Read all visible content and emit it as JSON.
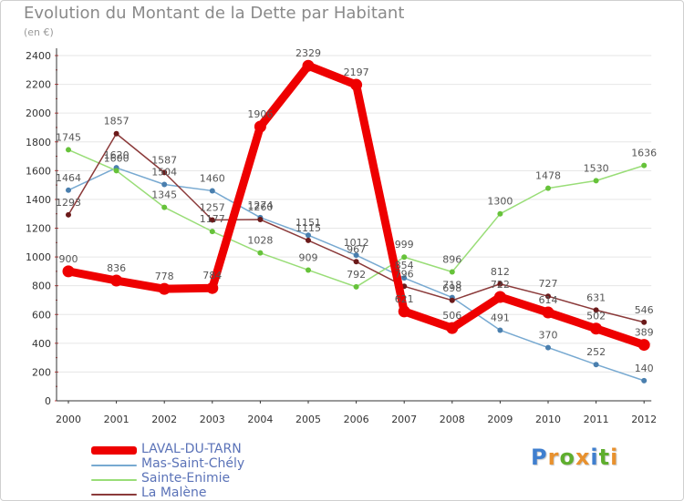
{
  "title": "Evolution du Montant de la Dette par Habitant",
  "subtitle": "(en €)",
  "logo": "Proxiti",
  "chart_data": {
    "type": "line",
    "title": "Evolution du Montant de la Dette par Habitant",
    "subtitle": "(en €)",
    "xlabel": "",
    "ylabel": "",
    "categories": [
      "2000",
      "2001",
      "2002",
      "2003",
      "2004",
      "2005",
      "2006",
      "2007",
      "2008",
      "2009",
      "2010",
      "2011",
      "2012"
    ],
    "ylim": [
      0,
      2400
    ],
    "yticks": [
      0,
      200,
      400,
      600,
      800,
      1000,
      1200,
      1400,
      1600,
      1800,
      2000,
      2200,
      2400
    ],
    "grid": true,
    "legend": "bottom-left",
    "series": [
      {
        "name": "LAVAL-DU-TARN",
        "color": "#ee0000",
        "width": 9,
        "marker": "#ee0000",
        "values": [
          900,
          836,
          778,
          784,
          1906,
          2329,
          2197,
          621,
          506,
          722,
          614,
          502,
          389
        ]
      },
      {
        "name": "Mas-Saint-Chély",
        "color": "#77a9d1",
        "width": 1.5,
        "marker": "#4a7fae",
        "values": [
          1464,
          1620,
          1504,
          1460,
          1274,
          1151,
          1012,
          854,
          718,
          491,
          370,
          252,
          140
        ]
      },
      {
        "name": "Sainte-Enimie",
        "color": "#99dd77",
        "width": 1.5,
        "marker": "#66c23a",
        "values": [
          1745,
          1600,
          1345,
          1177,
          1028,
          909,
          792,
          999,
          896,
          1300,
          1478,
          1530,
          1636
        ]
      },
      {
        "name": "La Malène",
        "color": "#8b3a3a",
        "width": 1.5,
        "marker": "#6b1a1a",
        "values": [
          1293,
          1857,
          1587,
          1257,
          1260,
          1115,
          967,
          796,
          698,
          812,
          727,
          631,
          546
        ]
      }
    ]
  },
  "colors": {
    "grid": "#e6e6e6",
    "axis": "#333333",
    "tick_label": "#333333",
    "value_label": "#555555",
    "legend_text": "#5b73b8",
    "logo_letters": [
      "#3f7fcf",
      "#e8912e",
      "#5fae2e",
      "#e8912e",
      "#3f7fcf",
      "#5fae2e",
      "#e8912e"
    ]
  }
}
